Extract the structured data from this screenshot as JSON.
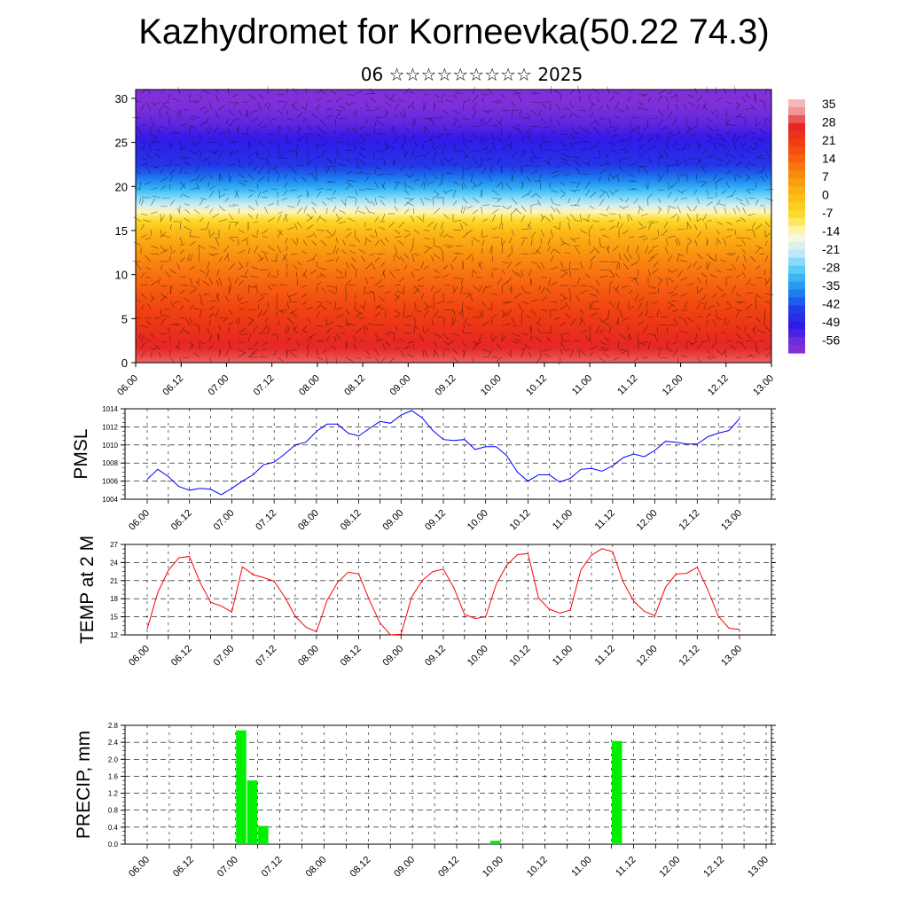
{
  "page": {
    "title": "Kazhydromet for Korneevka(50.22 74.3)",
    "subtitle": "06 ☆☆☆☆☆☆☆☆☆ 2025"
  },
  "chart_data": [
    {
      "type": "heatmap",
      "ylim": [
        0,
        31
      ],
      "yticks": [
        0,
        5,
        10,
        15,
        20,
        25,
        30
      ],
      "xticks": [
        "06.00",
        "06.12",
        "07.00",
        "07.12",
        "08.00",
        "08.12",
        "09.00",
        "09.12",
        "10.00",
        "10.12",
        "11.00",
        "11.12",
        "12.00",
        "12.12",
        "13.00"
      ],
      "colorbar": {
        "labels": [
          "35",
          "28",
          "21",
          "14",
          "7",
          "0",
          "-7",
          "-14",
          "-21",
          "-28",
          "-35",
          "-42",
          "-49",
          "-56"
        ],
        "colors": [
          "#f4b6b6",
          "#e52424",
          "#f04010",
          "#f86a10",
          "#fa9a10",
          "#fcc018",
          "#fde030",
          "#fffbd8",
          "#bfe8f8",
          "#4cc8f8",
          "#1c8cf0",
          "#2040e8",
          "#3018e8",
          "#8030d8"
        ]
      },
      "vertical_profile": [
        {
          "level": 0,
          "value": 31
        },
        {
          "level": 4,
          "value": 24
        },
        {
          "level": 8,
          "value": 17
        },
        {
          "level": 12,
          "value": 9
        },
        {
          "level": 15,
          "value": 1
        },
        {
          "level": 16.5,
          "value": -8
        },
        {
          "level": 18,
          "value": -20
        },
        {
          "level": 20,
          "value": -32
        },
        {
          "level": 22.5,
          "value": -44
        },
        {
          "level": 25,
          "value": -48
        },
        {
          "level": 27,
          "value": -53
        },
        {
          "level": 31,
          "value": -58
        }
      ]
    },
    {
      "type": "line",
      "ylabel": "PMSL",
      "ylim": [
        1004,
        1014
      ],
      "yticks": [
        1004,
        1006,
        1008,
        1010,
        1012,
        1014
      ],
      "xticks": [
        "06.00",
        "06.12",
        "07.00",
        "07.12",
        "08.00",
        "08.12",
        "09.00",
        "09.12",
        "10.00",
        "10.12",
        "11.00",
        "11.12",
        "12.00",
        "12.12",
        "13.00"
      ],
      "color": "#0000ff",
      "series": [
        {
          "values": [
            1006.2,
            1007.3,
            1006.5,
            1005.4,
            1005.0,
            1005.2,
            1005.1,
            1004.5,
            1005.2,
            1006.0,
            1006.7,
            1007.8,
            1008.1,
            1009.0,
            1010.0,
            1010.3,
            1011.5,
            1012.3,
            1012.3,
            1011.3,
            1011.0,
            1011.8,
            1012.6,
            1012.4,
            1013.3,
            1013.8,
            1013.0,
            1011.6,
            1010.6,
            1010.5,
            1010.6,
            1009.5,
            1009.8,
            1009.8,
            1008.8,
            1007.0,
            1006.0,
            1006.7,
            1006.7,
            1005.9,
            1006.3,
            1007.3,
            1007.4,
            1007.1,
            1007.7,
            1008.6,
            1009.0,
            1008.7,
            1009.4,
            1010.4,
            1010.3,
            1010.1,
            1010.1,
            1010.9,
            1011.3,
            1011.6,
            1012.9
          ]
        }
      ]
    },
    {
      "type": "line",
      "ylabel": "TEMP at 2 M",
      "ylim": [
        12,
        27
      ],
      "yticks": [
        12,
        15,
        18,
        21,
        24,
        27
      ],
      "xticks": [
        "06.00",
        "06.12",
        "07.00",
        "07.12",
        "08.00",
        "08.12",
        "09.00",
        "09.12",
        "10.00",
        "10.12",
        "11.00",
        "11.12",
        "12.00",
        "12.12",
        "13.00"
      ],
      "color": "#ff0000",
      "series": [
        {
          "values": [
            13.0,
            19.0,
            22.7,
            24.8,
            25.0,
            20.7,
            17.4,
            16.8,
            15.8,
            23.3,
            22.0,
            21.5,
            20.9,
            18.3,
            15.1,
            13.3,
            12.5,
            17.7,
            20.7,
            22.4,
            22.1,
            17.8,
            14.0,
            12.0,
            12.1,
            18.3,
            21.0,
            22.5,
            22.9,
            19.8,
            15.4,
            14.7,
            15.0,
            20.4,
            23.6,
            25.3,
            25.5,
            18.1,
            16.3,
            15.6,
            16.1,
            22.8,
            25.2,
            26.3,
            25.8,
            20.8,
            17.6,
            15.9,
            15.2,
            19.9,
            22.1,
            22.2,
            23.2,
            19.5,
            15.1,
            13.1,
            12.9
          ]
        }
      ]
    },
    {
      "type": "bar",
      "ylabel": "PRECIP, mm",
      "ylim": [
        0.0,
        2.8
      ],
      "yticks": [
        "0.0",
        "0.4",
        "0.8",
        "1.2",
        "1.6",
        "2.0",
        "2.4",
        "2.8"
      ],
      "xticks": [
        "06.00",
        "06.12",
        "07.00",
        "07.12",
        "08.00",
        "08.12",
        "09.00",
        "09.12",
        "10.00",
        "10.12",
        "11.00",
        "11.12",
        "12.00",
        "12.12",
        "13.00"
      ],
      "color": "#00ee00",
      "bars": [
        {
          "x_hours": 24,
          "value": 2.68
        },
        {
          "x_hours": 27,
          "value": 1.5
        },
        {
          "x_hours": 30,
          "value": 0.43
        },
        {
          "x_hours": 93,
          "value": 0.08
        },
        {
          "x_hours": 105,
          "value": 0.02
        },
        {
          "x_hours": 126,
          "value": 2.43
        }
      ]
    }
  ]
}
